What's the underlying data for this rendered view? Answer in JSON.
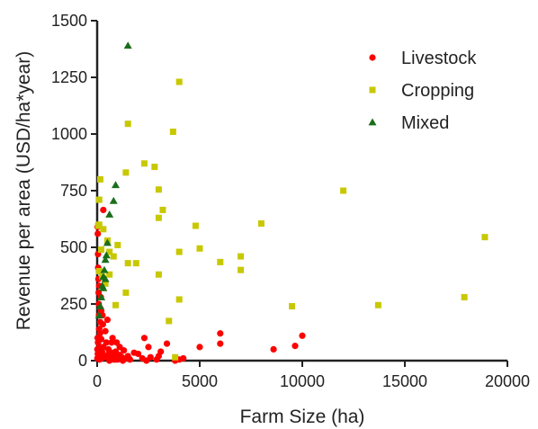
{
  "chart_data": {
    "type": "scatter",
    "title": "",
    "xlabel": "Farm Size (ha)",
    "ylabel": "Revenue per area (USD/ha*year)",
    "xlim": [
      0,
      20000
    ],
    "ylim": [
      0,
      1500
    ],
    "xticks": [
      0,
      5000,
      10000,
      15000,
      20000
    ],
    "yticks": [
      0,
      250,
      500,
      750,
      1000,
      1250,
      1500
    ],
    "grid": false,
    "legend_position": "top-right",
    "series": [
      {
        "name": "Livestock",
        "color": "#ff0000",
        "marker": "circle",
        "points": [
          [
            8600,
            50
          ],
          [
            9650,
            65
          ],
          [
            10000,
            110
          ],
          [
            6000,
            120
          ],
          [
            6000,
            75
          ],
          [
            5000,
            60
          ],
          [
            4200,
            10
          ],
          [
            4000,
            5
          ],
          [
            3800,
            0
          ],
          [
            3400,
            75
          ],
          [
            3100,
            40
          ],
          [
            3000,
            20
          ],
          [
            2900,
            5
          ],
          [
            2600,
            15
          ],
          [
            2500,
            60
          ],
          [
            2400,
            0
          ],
          [
            2300,
            100
          ],
          [
            2200,
            10
          ],
          [
            2000,
            30
          ],
          [
            1800,
            35
          ],
          [
            1600,
            5
          ],
          [
            1500,
            20
          ],
          [
            1400,
            10
          ],
          [
            1300,
            45
          ],
          [
            1250,
            0
          ],
          [
            1200,
            15
          ],
          [
            1100,
            60
          ],
          [
            1000,
            5
          ],
          [
            950,
            80
          ],
          [
            900,
            40
          ],
          [
            850,
            20
          ],
          [
            800,
            5
          ],
          [
            750,
            100
          ],
          [
            700,
            35
          ],
          [
            650,
            10
          ],
          [
            600,
            0
          ],
          [
            550,
            50
          ],
          [
            500,
            25
          ],
          [
            450,
            80
          ],
          [
            400,
            130
          ],
          [
            350,
            15
          ],
          [
            300,
            60
          ],
          [
            280,
            160
          ],
          [
            260,
            200
          ],
          [
            240,
            40
          ],
          [
            220,
            10
          ],
          [
            200,
            95
          ],
          [
            180,
            280
          ],
          [
            160,
            230
          ],
          [
            150,
            170
          ],
          [
            140,
            120
          ],
          [
            130,
            60
          ],
          [
            120,
            20
          ],
          [
            110,
            5
          ],
          [
            100,
            140
          ],
          [
            90,
            200
          ],
          [
            80,
            250
          ],
          [
            70,
            300
          ],
          [
            60,
            360
          ],
          [
            50,
            410
          ],
          [
            40,
            470
          ],
          [
            40,
            80
          ],
          [
            30,
            560
          ],
          [
            30,
            30
          ],
          [
            20,
            590
          ],
          [
            20,
            100
          ],
          [
            10,
            10
          ],
          [
            10,
            50
          ],
          [
            300,
            665
          ],
          [
            100,
            330
          ],
          [
            200,
            220
          ],
          [
            150,
            10
          ],
          [
            700,
            80
          ],
          [
            500,
            180
          ],
          [
            900,
            5
          ],
          [
            1100,
            25
          ]
        ]
      },
      {
        "name": "Cropping",
        "color": "#c8c800",
        "marker": "square",
        "points": [
          [
            18900,
            545
          ],
          [
            17900,
            280
          ],
          [
            13700,
            245
          ],
          [
            12000,
            750
          ],
          [
            9500,
            240
          ],
          [
            8000,
            605
          ],
          [
            7000,
            460
          ],
          [
            7000,
            400
          ],
          [
            6000,
            435
          ],
          [
            5000,
            495
          ],
          [
            4800,
            595
          ],
          [
            4000,
            1230
          ],
          [
            4000,
            480
          ],
          [
            4000,
            270
          ],
          [
            3800,
            15
          ],
          [
            3700,
            1010
          ],
          [
            3500,
            175
          ],
          [
            3200,
            665
          ],
          [
            3000,
            755
          ],
          [
            3000,
            630
          ],
          [
            3000,
            380
          ],
          [
            2800,
            855
          ],
          [
            2300,
            870
          ],
          [
            1900,
            430
          ],
          [
            1500,
            1045
          ],
          [
            1500,
            430
          ],
          [
            1400,
            300
          ],
          [
            1400,
            830
          ],
          [
            1000,
            510
          ],
          [
            900,
            245
          ],
          [
            800,
            460
          ],
          [
            600,
            480
          ],
          [
            600,
            380
          ],
          [
            500,
            530
          ],
          [
            300,
            580
          ],
          [
            250,
            370
          ],
          [
            200,
            490
          ],
          [
            150,
            800
          ],
          [
            100,
            710
          ],
          [
            100,
            395
          ],
          [
            50,
            595
          ],
          [
            100,
            600
          ],
          [
            400,
            340
          ]
        ]
      },
      {
        "name": "Mixed",
        "color": "#1a6e1a",
        "marker": "triangle",
        "points": [
          [
            1500,
            1390
          ],
          [
            900,
            775
          ],
          [
            800,
            705
          ],
          [
            600,
            645
          ],
          [
            500,
            520
          ],
          [
            450,
            465
          ],
          [
            400,
            445
          ],
          [
            350,
            400
          ],
          [
            300,
            370
          ],
          [
            300,
            320
          ],
          [
            250,
            330
          ],
          [
            200,
            280
          ],
          [
            150,
            240
          ],
          [
            100,
            200
          ],
          [
            400,
            360
          ]
        ]
      }
    ]
  }
}
